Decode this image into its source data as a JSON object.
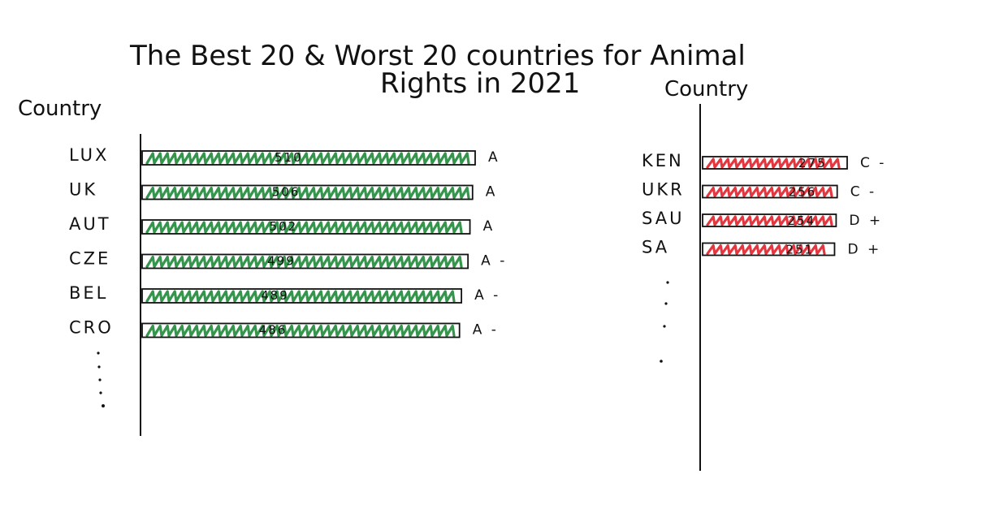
{
  "chart_data": [
    {
      "type": "bar",
      "orientation": "horizontal",
      "group": "best",
      "ylabel": "Country",
      "categories": [
        "LUX",
        "UK",
        "AUT",
        "CZE",
        "BEL",
        "CRO"
      ],
      "values": [
        510,
        506,
        502,
        499,
        489,
        486
      ],
      "value_labels": [
        "510",
        "506",
        "502",
        "499",
        "489",
        "486"
      ],
      "grades": [
        "A",
        "A",
        "A",
        "A -",
        "A -",
        "A -"
      ],
      "color": "#1f8a3a",
      "truncated": true
    },
    {
      "type": "bar",
      "orientation": "horizontal",
      "group": "worst",
      "ylabel": "Country",
      "categories": [
        "KEN",
        "UKR",
        "SAU",
        "SA"
      ],
      "values": [
        275,
        256,
        254,
        251
      ],
      "value_labels": [
        "275",
        "256",
        "254",
        "251"
      ],
      "grades": [
        "C -",
        "C -",
        "D +",
        "D +"
      ],
      "color": "#e0202a",
      "truncated": true
    }
  ],
  "title": {
    "line1": "The Best 20 & Worst 20 countries for Animal",
    "line2": "Rights in 2021"
  },
  "colors": {
    "ink": "#111111",
    "best": "#1f8a3a",
    "worst": "#e0202a"
  }
}
